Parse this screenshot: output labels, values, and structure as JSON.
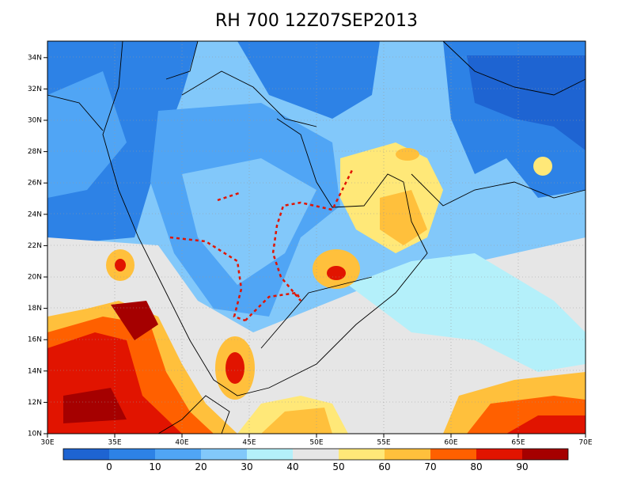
{
  "title": "RH 700 12Z07SEP2013",
  "map": {
    "lon_labels": [
      "30E",
      "35E",
      "40E",
      "45E",
      "50E",
      "55E",
      "60E",
      "65E",
      "70E"
    ],
    "lat_labels": [
      "10N",
      "12N",
      "14N",
      "16N",
      "18N",
      "20N",
      "22N",
      "24N",
      "26N",
      "28N",
      "30N",
      "32N",
      "34N"
    ]
  },
  "colorbar": {
    "colors": [
      "#1e64d2",
      "#2d82e6",
      "#50a5f5",
      "#82c8fa",
      "#b4f0fa",
      "#e6e6e6",
      "#ffe878",
      "#ffc03c",
      "#ff6000",
      "#e11400",
      "#a50000"
    ],
    "labels": [
      0,
      10,
      20,
      30,
      40,
      50,
      60,
      70,
      80,
      90
    ]
  }
}
